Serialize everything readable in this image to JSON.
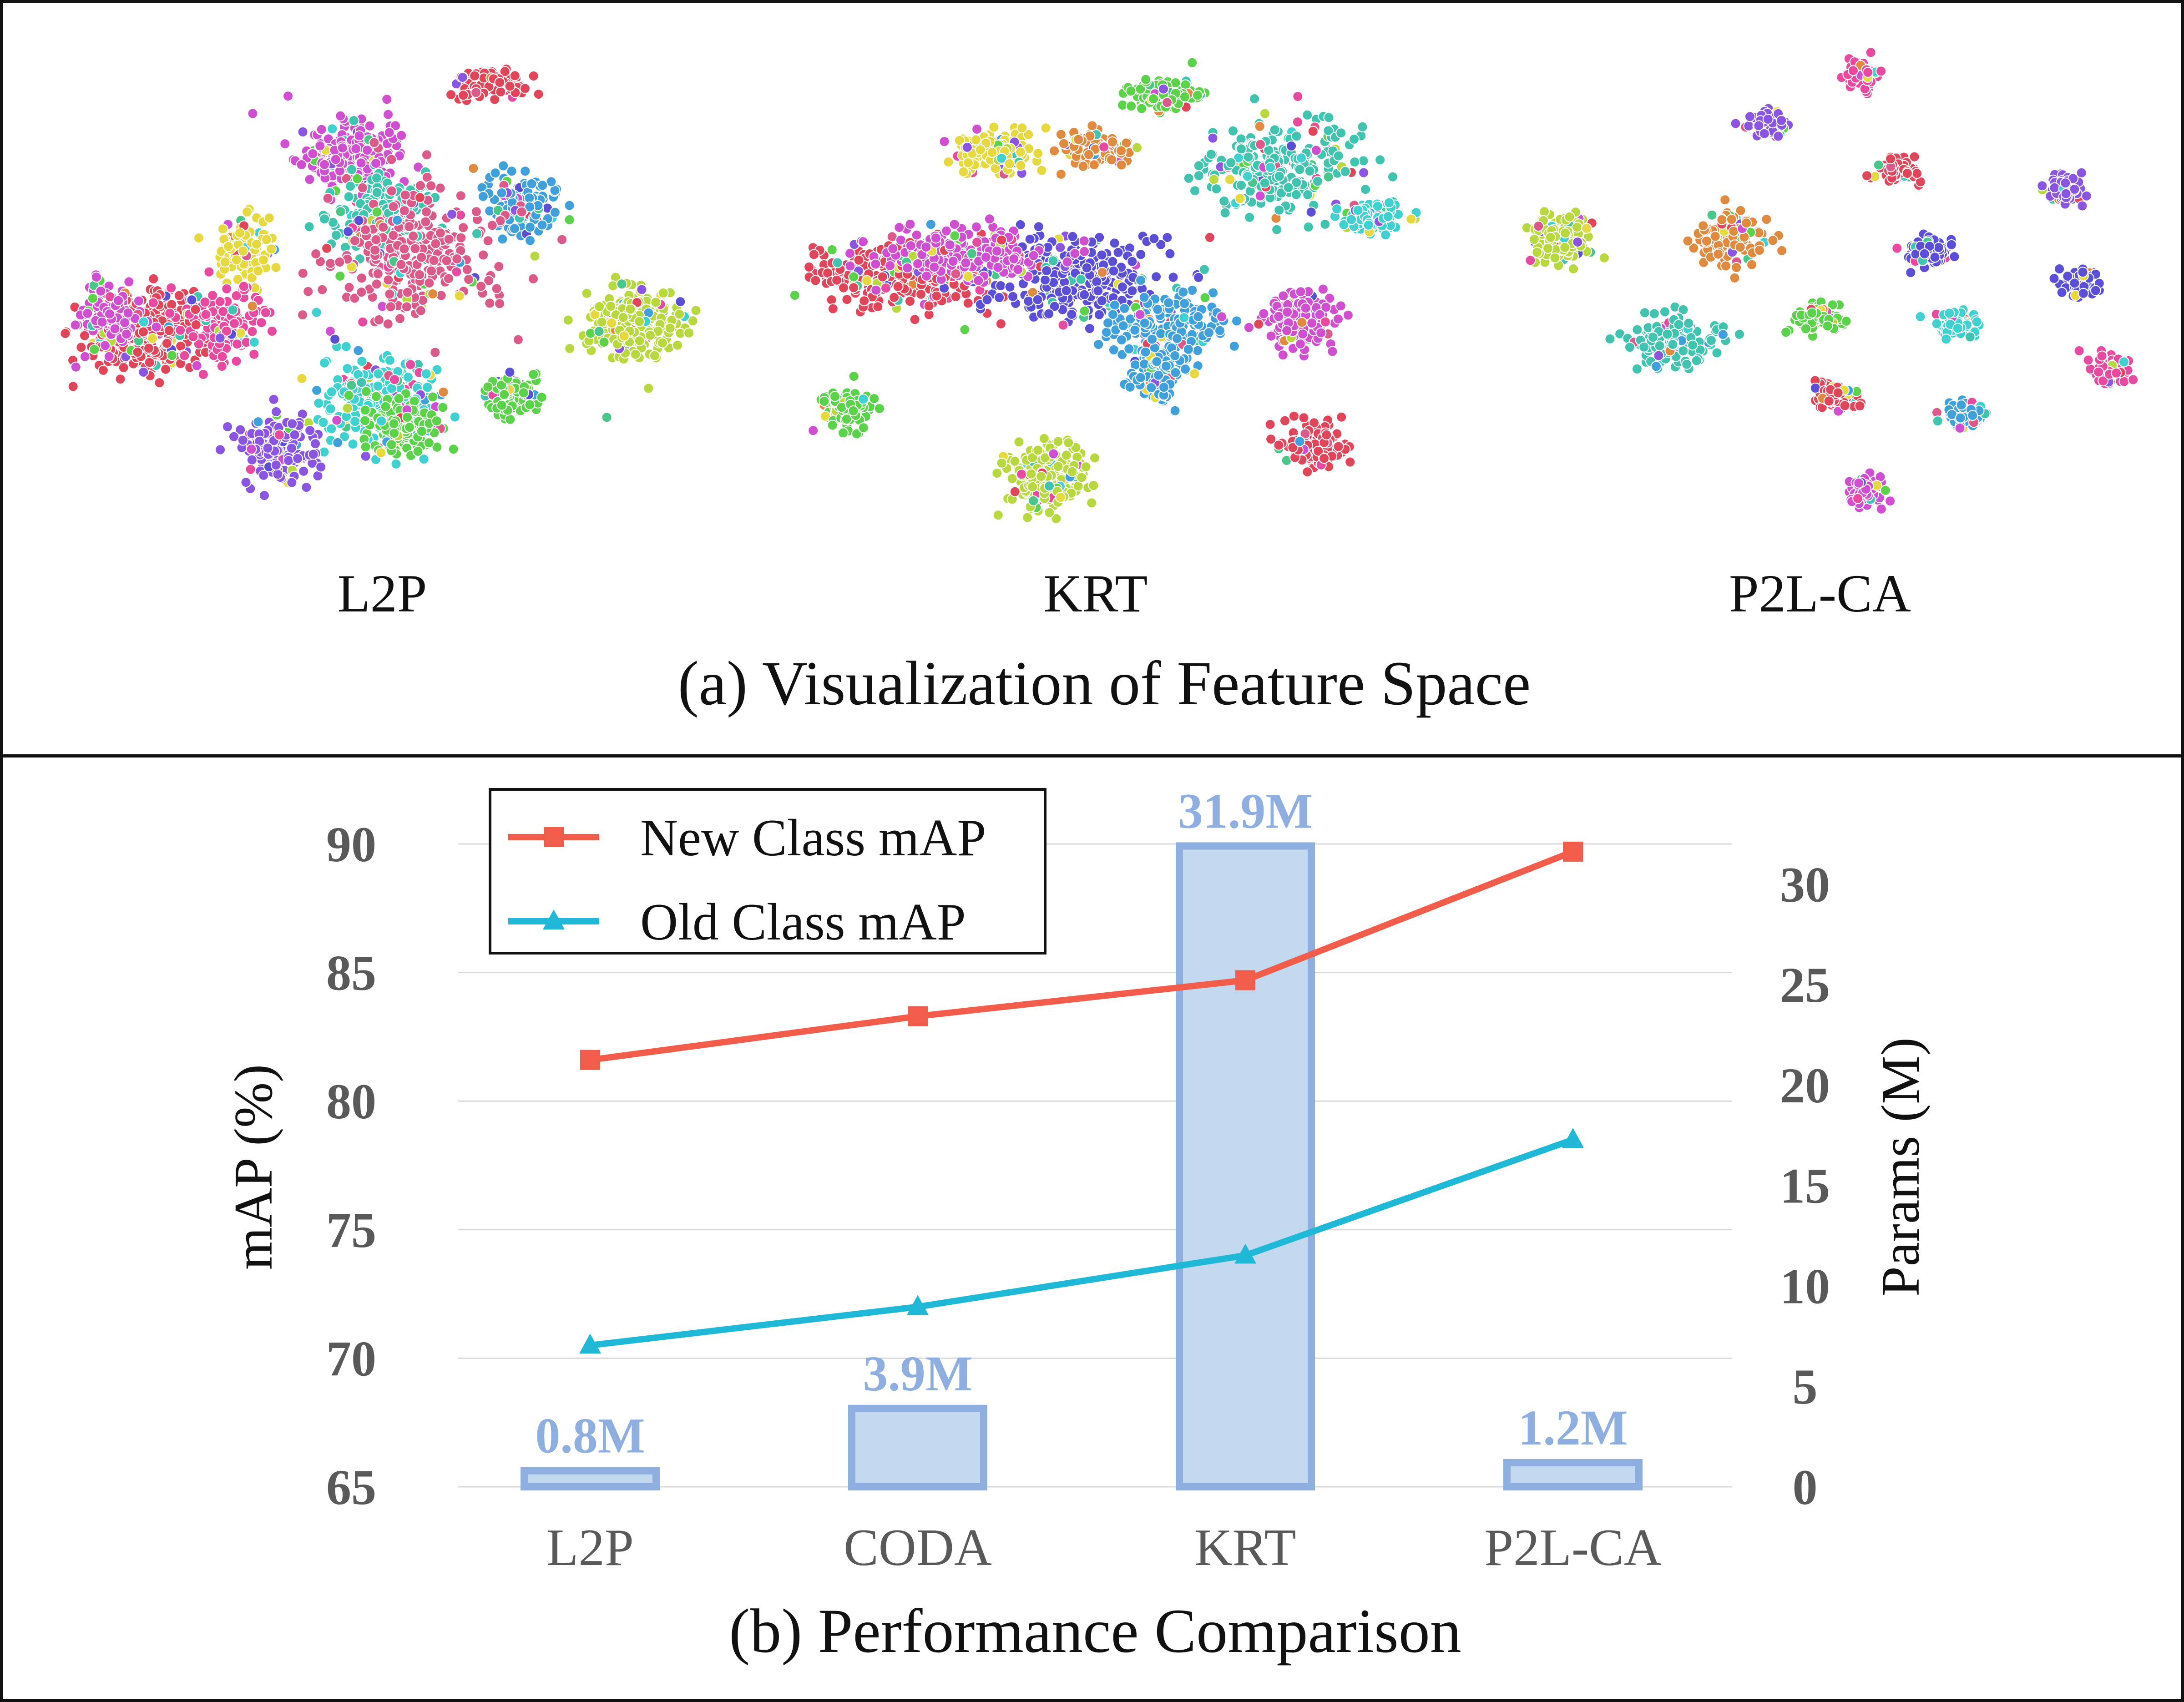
{
  "panel_a": {
    "caption": "(a) Visualization of Feature Space",
    "methods": [
      "L2P",
      "KRT",
      "P2L-CA"
    ]
  },
  "panel_b": {
    "caption": "(b) Performance Comparison"
  },
  "colors": {
    "new_class": "#f25c4a",
    "old_class": "#1fb8d6",
    "bar_fill": "#c3d9f0",
    "bar_stroke": "#8eaee0",
    "bar_label": "#8eaee0",
    "axis_text": "#595959",
    "grid": "#d9d9d9"
  },
  "chart_data": [
    {
      "type": "scatter",
      "subplots": [
        {
          "name": "L2P"
        },
        {
          "name": "KRT"
        },
        {
          "name": "P2L-CA"
        }
      ]
    },
    {
      "type": "bar+line",
      "categories": [
        "L2P",
        "CODA",
        "KRT",
        "P2L-CA"
      ],
      "ylabel": "mAP (%)",
      "ylabel_right": "Params (M)",
      "ylim": [
        65,
        90
      ],
      "yticks": [
        65,
        70,
        75,
        80,
        85,
        90
      ],
      "ylim_right": [
        0,
        32
      ],
      "yticks_right": [
        0,
        5,
        10,
        15,
        20,
        25,
        30
      ],
      "grid": true,
      "legend_position": "top-left",
      "series": [
        {
          "name": "New Class mAP",
          "type": "line",
          "marker": "square",
          "values": [
            81.6,
            83.3,
            84.7,
            89.7
          ]
        },
        {
          "name": "Old Class mAP",
          "type": "line",
          "marker": "triangle",
          "values": [
            70.5,
            72.0,
            74.0,
            78.5
          ]
        }
      ],
      "bars": {
        "values": [
          0.8,
          3.9,
          31.9,
          1.2
        ],
        "labels": [
          "0.8M",
          "3.9M",
          "31.9M",
          "1.2M"
        ]
      }
    }
  ]
}
